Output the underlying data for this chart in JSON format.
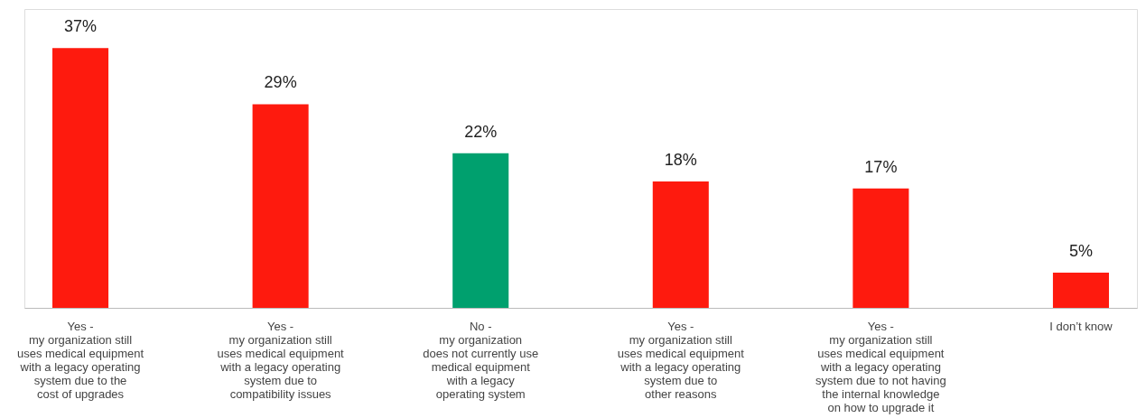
{
  "chart_data": {
    "type": "bar",
    "categories": [
      "Yes -\nmy organization still\nuses medical equipment\nwith a legacy operating\nsystem due to the\ncost of upgrades",
      "Yes -\nmy organization still\nuses medical equipment\nwith a legacy operating\nsystem due to\ncompatibility issues",
      "No -\nmy organization\ndoes not currently use\nmedical equipment\nwith a legacy\noperating system",
      "Yes -\nmy organization still\nuses medical equipment\nwith a legacy operating\nsystem due to\nother reasons",
      "Yes -\nmy organization still\nuses medical equipment\nwith a legacy operating\nsystem due to not having\nthe internal knowledge\non how to upgrade it",
      "I don’t know"
    ],
    "values": [
      37,
      29,
      22,
      18,
      17,
      5
    ],
    "value_labels": [
      "37%",
      "29%",
      "22%",
      "18%",
      "17%",
      "5%"
    ],
    "colors": [
      "#fe1a0e",
      "#fe1a0e",
      "#00a06e",
      "#fe1a0e",
      "#fe1a0e",
      "#fe1a0e"
    ],
    "grid": false
  }
}
